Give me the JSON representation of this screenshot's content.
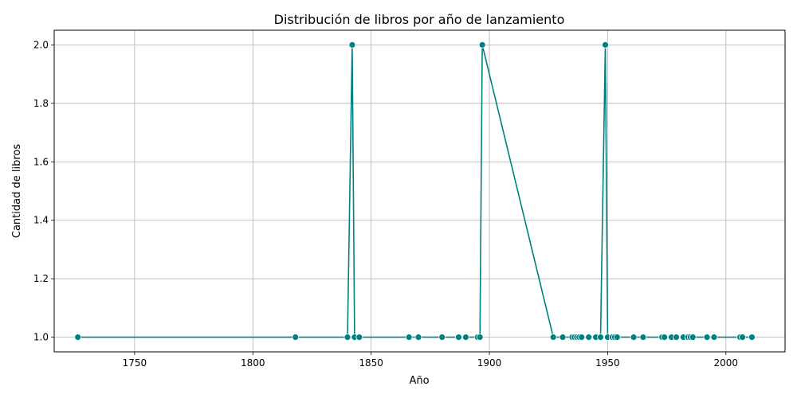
{
  "chart_data": {
    "type": "line",
    "title": "Distribución de libros por año de lanzamiento",
    "xlabel": "Año",
    "ylabel": "Cantidad de libros",
    "xlim": [
      1716,
      2025
    ],
    "ylim": [
      0.95,
      2.05
    ],
    "xticks": [
      "1750",
      "1800",
      "1850",
      "1900",
      "1950",
      "2000"
    ],
    "yticks": [
      "1.0",
      "1.2",
      "1.4",
      "1.6",
      "1.8",
      "2.0"
    ],
    "grid": true,
    "color": "#008080",
    "series": [
      {
        "x": [
          1726,
          1818,
          1840,
          1842,
          1843,
          1845,
          1866,
          1870,
          1880,
          1887,
          1890,
          1895,
          1896,
          1897,
          1927,
          1931,
          1935,
          1936,
          1937,
          1938,
          1939,
          1942,
          1945,
          1947,
          1949,
          1950,
          1952,
          1953,
          1954,
          1961,
          1965,
          1973,
          1974,
          1977,
          1979,
          1982,
          1984,
          1985,
          1986,
          1992,
          1995,
          2006,
          2007,
          2011
        ],
        "y": [
          1,
          1,
          1,
          2,
          1,
          1,
          1,
          1,
          1,
          1,
          1,
          1,
          1,
          2,
          1,
          1,
          1,
          1,
          1,
          1,
          1,
          1,
          1,
          1,
          2,
          1,
          1,
          1,
          1,
          1,
          1,
          1,
          1,
          1,
          1,
          1,
          1,
          1,
          1,
          1,
          1,
          1,
          1,
          1
        ]
      }
    ]
  }
}
